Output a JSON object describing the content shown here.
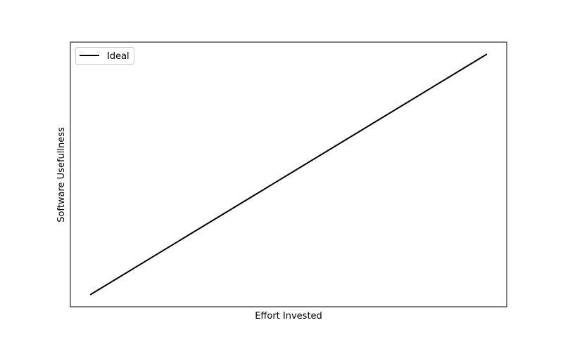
{
  "chart_data": {
    "type": "line",
    "title": "",
    "xlabel": "Effort Invested",
    "ylabel": "Software Usefullness",
    "x": [
      0,
      1
    ],
    "series": [
      {
        "name": "Ideal",
        "values": [
          0,
          1
        ],
        "color": "#000000"
      }
    ],
    "xlim": [
      -0.05,
      1.05
    ],
    "ylim": [
      -0.05,
      1.05
    ],
    "x_ticks": "none",
    "y_ticks": "none",
    "grid": false,
    "legend": {
      "location": "top-left",
      "entries": [
        "Ideal"
      ]
    }
  }
}
